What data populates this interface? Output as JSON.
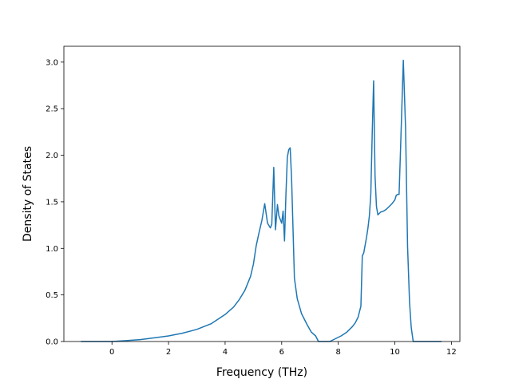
{
  "chart_data": {
    "type": "line",
    "title": "",
    "xlabel": "Frequency (THz)",
    "ylabel": "Density of States",
    "xlim": [
      -1.7,
      12.3
    ],
    "ylim": [
      0,
      3.17
    ],
    "xticks": [
      0,
      2,
      4,
      6,
      8,
      10,
      12
    ],
    "yticks": [
      0.0,
      0.5,
      1.0,
      1.5,
      2.0,
      2.5,
      3.0
    ],
    "grid": false,
    "legend": "none",
    "color": "#1f77b4",
    "series": [
      {
        "x": [
          -1.1,
          -0.5,
          0.0,
          0.5,
          1.0,
          1.5,
          2.0,
          2.5,
          3.0,
          3.5,
          4.0,
          4.3,
          4.5,
          4.7,
          4.9,
          5.0,
          5.1,
          5.2,
          5.3,
          5.4,
          5.5,
          5.6,
          5.65,
          5.72,
          5.78,
          5.85,
          5.9,
          6.0,
          6.05,
          6.1,
          6.15,
          6.2,
          6.25,
          6.3,
          6.35,
          6.45,
          6.55,
          6.7,
          6.9,
          7.05,
          7.2,
          7.3,
          7.5,
          7.7,
          7.9,
          8.1,
          8.3,
          8.5,
          8.6,
          8.7,
          8.8,
          8.85,
          8.9,
          9.0,
          9.05,
          9.1,
          9.15,
          9.2,
          9.25,
          9.3,
          9.35,
          9.4,
          9.5,
          9.6,
          9.7,
          9.8,
          9.9,
          10.0,
          10.05,
          10.1,
          10.15,
          10.2,
          10.3,
          10.38,
          10.45,
          10.52,
          10.58,
          10.65,
          10.8,
          11.2,
          11.65
        ],
        "y": [
          0.0,
          0.0,
          0.0,
          0.01,
          0.02,
          0.04,
          0.06,
          0.09,
          0.13,
          0.19,
          0.29,
          0.37,
          0.45,
          0.55,
          0.7,
          0.83,
          1.03,
          1.17,
          1.3,
          1.48,
          1.27,
          1.22,
          1.26,
          1.87,
          1.2,
          1.47,
          1.35,
          1.27,
          1.4,
          1.08,
          1.58,
          1.98,
          2.06,
          2.08,
          1.75,
          0.68,
          0.46,
          0.3,
          0.18,
          0.1,
          0.06,
          0.0,
          0.0,
          0.0,
          0.03,
          0.06,
          0.1,
          0.16,
          0.2,
          0.26,
          0.38,
          0.92,
          0.95,
          1.12,
          1.22,
          1.35,
          1.58,
          2.23,
          2.8,
          1.78,
          1.45,
          1.36,
          1.39,
          1.4,
          1.42,
          1.45,
          1.48,
          1.52,
          1.57,
          1.58,
          1.58,
          2.05,
          3.02,
          2.28,
          1.02,
          0.42,
          0.15,
          0.0,
          0.0,
          0.0,
          0.0
        ]
      }
    ]
  }
}
